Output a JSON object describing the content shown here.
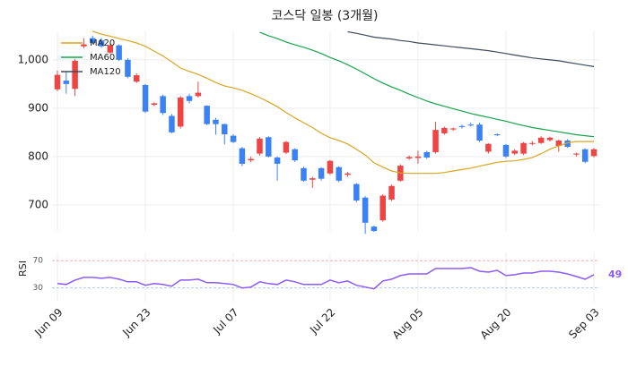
{
  "chart_data": [
    {
      "type": "candlestick",
      "title": "코스닥 일봉 (3개월)",
      "categories": [
        "Jun 09",
        null,
        null,
        null,
        null,
        null,
        null,
        null,
        null,
        null,
        "Jun 23",
        null,
        null,
        null,
        null,
        null,
        null,
        null,
        null,
        null,
        "Jul 07",
        null,
        null,
        null,
        null,
        null,
        null,
        null,
        null,
        null,
        null,
        "Jul 22",
        null,
        null,
        null,
        null,
        null,
        null,
        null,
        null,
        null,
        "Aug 05",
        null,
        null,
        null,
        null,
        null,
        null,
        null,
        null,
        null,
        "Aug 20",
        null,
        null,
        null,
        null,
        null,
        null,
        null,
        null,
        null,
        "Sep 03"
      ],
      "open": [
        939,
        957,
        940,
        1028,
        1045,
        1040,
        1015,
        1030,
        1000,
        955,
        948,
        907,
        925,
        884,
        862,
        925,
        925,
        905,
        876,
        867,
        843,
        817,
        792,
        806,
        840,
        798,
        808,
        815,
        776,
        752,
        776,
        765,
        778,
        762,
        743,
        715,
        655,
        668,
        711,
        750,
        796,
        797,
        809,
        809,
        848,
        856,
        863,
        866,
        866,
        810,
        846,
        824,
        806,
        806,
        826,
        828,
        834,
        822,
        833,
        804,
        815,
        801
      ],
      "high": [
        978,
        975,
        1002,
        1045,
        1050,
        1045,
        1034,
        1032,
        1003,
        972,
        950,
        912,
        928,
        888,
        925,
        930,
        955,
        906,
        880,
        868,
        846,
        820,
        800,
        840,
        842,
        800,
        832,
        817,
        779,
        758,
        778,
        793,
        780,
        768,
        745,
        718,
        657,
        722,
        742,
        784,
        802,
        812,
        812,
        872,
        862,
        860,
        866,
        870,
        870,
        828,
        848,
        826,
        815,
        830,
        832,
        842,
        841,
        835,
        836,
        808,
        817,
        817
      ],
      "low": [
        935,
        930,
        925,
        1024,
        1032,
        1025,
        1012,
        998,
        962,
        952,
        890,
        904,
        886,
        848,
        858,
        910,
        922,
        865,
        845,
        825,
        828,
        780,
        788,
        802,
        798,
        750,
        805,
        789,
        748,
        735,
        750,
        762,
        747,
        758,
        705,
        640,
        644,
        665,
        708,
        748,
        793,
        785,
        795,
        806,
        845,
        853,
        858,
        862,
        830,
        806,
        842,
        797,
        803,
        803,
        823,
        826,
        831,
        810,
        818,
        800,
        786,
        798
      ],
      "close": [
        969,
        950,
        998,
        1032,
        1035,
        1028,
        1030,
        1000,
        965,
        968,
        893,
        910,
        890,
        850,
        922,
        915,
        932,
        867,
        867,
        846,
        830,
        785,
        795,
        837,
        800,
        785,
        830,
        792,
        750,
        755,
        754,
        791,
        750,
        765,
        709,
        663,
        646,
        719,
        739,
        781,
        799,
        800,
        798,
        855,
        859,
        858,
        861,
        864,
        833,
        826,
        844,
        800,
        812,
        828,
        828,
        839,
        839,
        833,
        820,
        806,
        789,
        815
      ],
      "up_color": "#ef4444",
      "down_color": "#3b82f6",
      "series": [
        {
          "name": "MA20",
          "color": "#daa520",
          "values": [
            null,
            null,
            null,
            null,
            1059,
            1053,
            1049,
            1044,
            1040,
            1035,
            1028,
            1018,
            1008,
            996,
            983,
            976,
            970,
            962,
            953,
            946,
            942,
            937,
            930,
            922,
            913,
            903,
            891,
            880,
            870,
            860,
            848,
            839,
            833,
            826,
            815,
            803,
            787,
            778,
            770,
            766,
            765,
            765,
            765,
            765,
            767,
            770,
            773,
            776,
            780,
            784,
            788,
            790,
            791,
            794,
            798,
            806,
            815,
            822,
            828,
            831,
            831,
            831
          ]
        },
        {
          "name": "MA60",
          "color": "#16a34a",
          "values": [
            null,
            null,
            null,
            null,
            null,
            null,
            null,
            null,
            null,
            null,
            null,
            null,
            null,
            null,
            null,
            null,
            null,
            null,
            null,
            null,
            null,
            null,
            null,
            1057,
            1050,
            1044,
            1037,
            1031,
            1026,
            1020,
            1013,
            1005,
            998,
            990,
            981,
            971,
            961,
            952,
            944,
            937,
            929,
            922,
            915,
            909,
            904,
            899,
            894,
            889,
            885,
            881,
            877,
            873,
            868,
            864,
            860,
            857,
            854,
            851,
            848,
            845,
            843,
            841
          ]
        },
        {
          "name": "MA120",
          "color": "#3f4b5b",
          "values": [
            null,
            null,
            null,
            null,
            null,
            null,
            null,
            null,
            null,
            null,
            null,
            null,
            null,
            null,
            null,
            null,
            null,
            null,
            null,
            null,
            null,
            null,
            null,
            null,
            null,
            null,
            null,
            null,
            null,
            null,
            null,
            null,
            null,
            1058,
            1055,
            1051,
            1047,
            1045,
            1043,
            1040,
            1038,
            1035,
            1033,
            1031,
            1029,
            1027,
            1025,
            1023,
            1021,
            1019,
            1016,
            1013,
            1010,
            1007,
            1004,
            1002,
            1000,
            998,
            995,
            992,
            989,
            986
          ]
        }
      ],
      "ylim": [
        646,
        1059
      ],
      "yticks": [
        700,
        800,
        900,
        {
          "value": 1000,
          "label": "1,000"
        }
      ],
      "grid": true,
      "legend": "upper-left"
    },
    {
      "type": "line",
      "ylabel": "RSI",
      "color": "#8b5cf6",
      "values": [
        36.5,
        35.2,
        41.6,
        45.5,
        45.5,
        44.2,
        45.5,
        42.9,
        39.0,
        39.0,
        33.9,
        36.5,
        35.2,
        32.6,
        41.6,
        41.6,
        42.9,
        37.7,
        37.7,
        36.5,
        35.2,
        30.0,
        31.3,
        39.0,
        36.5,
        35.2,
        41.6,
        39.0,
        35.2,
        35.2,
        35.2,
        41.6,
        37.7,
        40.3,
        33.9,
        31.3,
        28.7,
        40.3,
        42.9,
        48.1,
        50.6,
        50.6,
        50.6,
        58.4,
        58.4,
        58.4,
        58.4,
        59.7,
        54.5,
        53.2,
        55.8,
        48.1,
        49.4,
        51.9,
        51.9,
        54.5,
        54.5,
        53.2,
        50.6,
        46.8,
        42.9,
        49.4
      ],
      "value_labels": [
        null,
        null,
        null,
        null,
        null,
        null,
        null,
        null,
        null,
        null,
        null,
        null,
        null,
        null,
        null,
        null,
        null,
        null,
        null,
        null,
        null,
        null,
        null,
        null,
        null,
        null,
        null,
        null,
        null,
        null,
        null,
        null,
        null,
        null,
        null,
        null,
        null,
        null,
        null,
        null,
        null,
        null,
        null,
        null,
        null,
        null,
        null,
        null,
        null,
        null,
        null,
        null,
        null,
        null,
        null,
        null,
        null,
        null,
        null,
        null,
        null,
        "49"
      ],
      "ylim": [
        10,
        82
      ],
      "yticks": [
        30,
        70
      ],
      "tick_colors": [
        "#93b4f0",
        "#f0a0a0"
      ]
    }
  ]
}
